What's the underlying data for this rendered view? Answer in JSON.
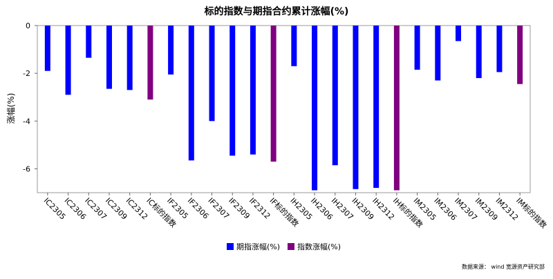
{
  "chart_data": {
    "type": "bar",
    "title": "标的指数与期指合约累计涨幅(%)",
    "ylabel": "涨幅(%)",
    "xlabel": "",
    "ylim": [
      -7.0,
      0
    ],
    "yticks": [
      0,
      -2,
      -4,
      -6
    ],
    "grid": false,
    "legend_position": "bottom",
    "categories": [
      "IC2305",
      "IC2306",
      "IC2307",
      "IC2309",
      "IC2312",
      "IC标的指数",
      "IF2305",
      "IF2306",
      "IF2307",
      "IF2309",
      "IF2312",
      "IF标的指数",
      "IH2305",
      "IH2306",
      "IH2307",
      "IH2309",
      "IH2312",
      "IH标的指数",
      "IM2305",
      "IM2306",
      "IM2307",
      "IM2309",
      "IM2312",
      "IM标的指数"
    ],
    "values": [
      -1.9,
      -2.9,
      -1.35,
      -2.65,
      -2.7,
      -3.1,
      -2.05,
      -5.65,
      -4.0,
      -5.45,
      -5.4,
      -5.7,
      -1.7,
      -6.9,
      -5.85,
      -6.85,
      -6.8,
      -6.9,
      -1.85,
      -2.3,
      -0.65,
      -2.2,
      -1.95,
      -2.45
    ],
    "kinds": [
      "future",
      "future",
      "future",
      "future",
      "future",
      "index",
      "future",
      "future",
      "future",
      "future",
      "future",
      "index",
      "future",
      "future",
      "future",
      "future",
      "future",
      "index",
      "future",
      "future",
      "future",
      "future",
      "future",
      "index"
    ],
    "series": [
      {
        "name": "期指涨幅(%)",
        "key": "future",
        "color": "#0000ff"
      },
      {
        "name": "指数涨幅(%)",
        "key": "index",
        "color": "#800080"
      }
    ],
    "source": "数据来源： wind 宽源资产研究部"
  }
}
